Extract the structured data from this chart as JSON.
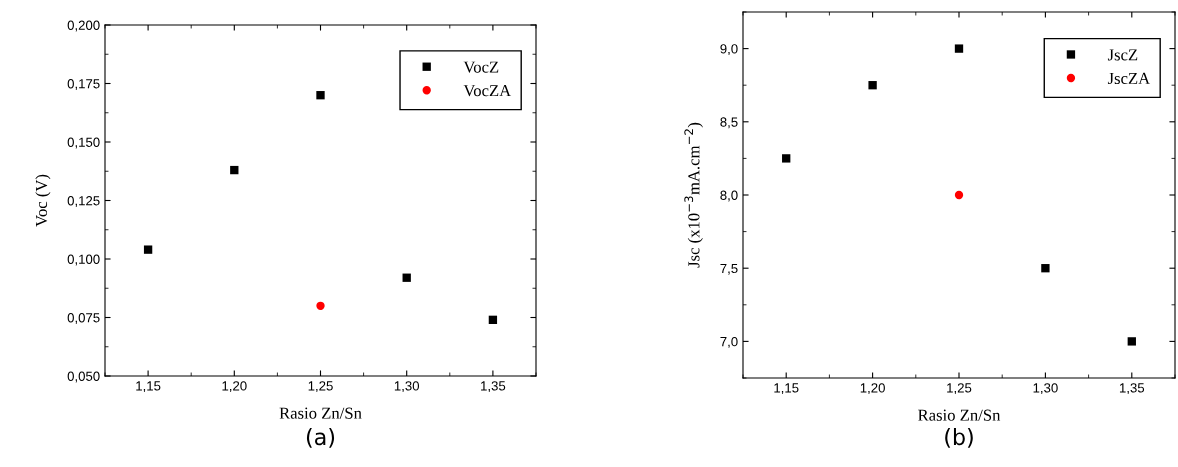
{
  "chart_data": [
    {
      "type": "scatter",
      "xlabel": "Rasio Zn/Sn",
      "ylabel": "Voc (V)",
      "annotations": [
        "(a)"
      ],
      "legend": "top right",
      "x": [
        1.15,
        1.2,
        1.25,
        1.3,
        1.35
      ],
      "series": [
        {
          "name": "VocZ",
          "color": "#000000",
          "marker": "square",
          "values": [
            0.104,
            0.138,
            0.17,
            0.092,
            0.074
          ]
        },
        {
          "name": "VocZA",
          "color": "#ff0000",
          "marker": "circle",
          "x": [
            1.25
          ],
          "values": [
            0.08
          ]
        }
      ],
      "xlim": [
        1.125,
        1.375
      ],
      "ylim": [
        0.05,
        0.2
      ],
      "xticks": [
        {
          "value": 1.15,
          "label": "1,15"
        },
        {
          "value": 1.2,
          "label": "1,20"
        },
        {
          "value": 1.25,
          "label": "1,25"
        },
        {
          "value": 1.3,
          "label": "1,30"
        },
        {
          "value": 1.35,
          "label": "1,35"
        }
      ],
      "yticks": [
        {
          "value": 0.05,
          "label": "0,050"
        },
        {
          "value": 0.075,
          "label": "0,075"
        },
        {
          "value": 0.1,
          "label": "0,100"
        },
        {
          "value": 0.125,
          "label": "0,125"
        },
        {
          "value": 0.15,
          "label": "0,150"
        },
        {
          "value": 0.175,
          "label": "0,175"
        },
        {
          "value": 0.2,
          "label": "0,200"
        }
      ]
    },
    {
      "type": "scatter",
      "xlabel": "Rasio Zn/Sn",
      "ylabel": "Jsc (x10$^{−3}$mA.cm$^{−2}$)",
      "annotations": [
        "(b)"
      ],
      "legend": "top right",
      "x": [
        1.15,
        1.2,
        1.25,
        1.3,
        1.35
      ],
      "series": [
        {
          "name": "JscZ",
          "color": "#000000",
          "marker": "square",
          "values": [
            8.25,
            8.75,
            9.0,
            7.5,
            7.0
          ]
        },
        {
          "name": "JscZA",
          "color": "#ff0000",
          "marker": "circle",
          "x": [
            1.25
          ],
          "values": [
            8.0
          ]
        }
      ],
      "xlim": [
        1.125,
        1.375
      ],
      "ylim": [
        6.75,
        9.25
      ],
      "xticks": [
        {
          "value": 1.15,
          "label": "1,15"
        },
        {
          "value": 1.2,
          "label": "1,20"
        },
        {
          "value": 1.25,
          "label": "1,25"
        },
        {
          "value": 1.3,
          "label": "1,30"
        },
        {
          "value": 1.35,
          "label": "1,35"
        }
      ],
      "yticks": [
        {
          "value": 7.0,
          "label": "7,0"
        },
        {
          "value": 7.5,
          "label": "7,5"
        },
        {
          "value": 8.0,
          "label": "8,0"
        },
        {
          "value": 8.5,
          "label": "8,5"
        },
        {
          "value": 9.0,
          "label": "9,0"
        }
      ]
    }
  ]
}
